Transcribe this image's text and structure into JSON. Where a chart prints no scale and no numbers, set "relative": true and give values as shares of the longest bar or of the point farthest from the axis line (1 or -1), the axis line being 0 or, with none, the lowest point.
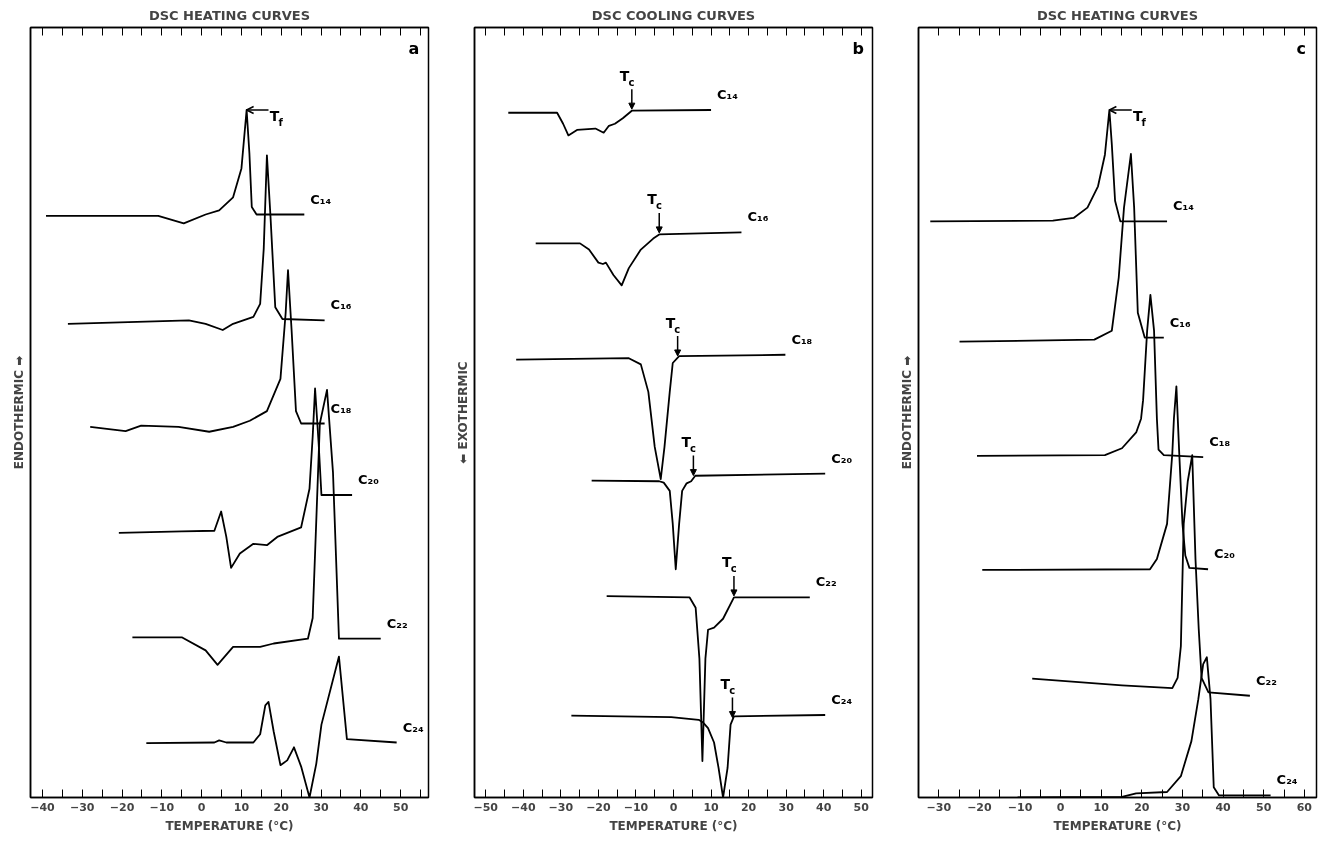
{
  "chart_data": [
    {
      "type": "line",
      "title": "DSC HEATING CURVES",
      "xlabel": "TEMPERATURE (°C)",
      "ylabel": "ENDOTHERMIC ➡",
      "relative": true,
      "tick_labels": "x",
      "grid": false,
      "xlim": [
        -43,
        57
      ],
      "xticks": [
        -40,
        -30,
        -20,
        -10,
        0,
        10,
        20,
        30,
        40,
        50,
        {
          "value": -35,
          "label": null
        },
        {
          "value": -25,
          "label": null
        },
        {
          "value": -15,
          "label": null
        },
        {
          "value": -5,
          "label": null
        },
        {
          "value": 5,
          "label": null
        },
        {
          "value": 15,
          "label": null
        },
        {
          "value": 25,
          "label": null
        },
        {
          "value": 35,
          "label": null
        },
        {
          "value": 45,
          "label": null
        },
        {
          "value": 55,
          "label": null
        }
      ],
      "annotations": [
        "a",
        {
          "text": "T$_{f}$",
          "x": 11.3,
          "y": 1.0
        }
      ],
      "series": [
        {
          "name": "C₁₄",
          "color": "#000000",
          "x": [
            -39.1,
            -10.9,
            -4.5,
            1.0,
            4.4,
            7.9,
            10.0,
            11.3,
            12.0,
            12.6,
            13.8,
            25.8
          ],
          "values": [
            0.846,
            0.846,
            0.835,
            0.848,
            0.854,
            0.873,
            0.915,
            1.0,
            0.937,
            0.859,
            0.848,
            0.848
          ]
        },
        {
          "name": "C₁₆",
          "color": "#000000",
          "x": [
            -33.6,
            -3.2,
            1.0,
            5.3,
            7.9,
            13.0,
            14.7,
            15.6,
            16.4,
            17.3,
            18.5,
            20.3,
            30.9
          ],
          "values": [
            0.689,
            0.694,
            0.689,
            0.68,
            0.689,
            0.699,
            0.718,
            0.798,
            0.934,
            0.845,
            0.713,
            0.696,
            0.694
          ]
        },
        {
          "name": "C₁₈",
          "color": "#000000",
          "x": [
            -28.0,
            -19.1,
            -15.2,
            -5.8,
            1.9,
            7.9,
            12.1,
            16.4,
            19.8,
            21.1,
            21.7,
            22.6,
            23.7,
            25.0,
            30.9
          ],
          "values": [
            0.539,
            0.533,
            0.541,
            0.539,
            0.532,
            0.539,
            0.548,
            0.562,
            0.609,
            0.704,
            0.767,
            0.68,
            0.562,
            0.544,
            0.544
          ]
        },
        {
          "name": "C₂₀",
          "color": "#000000",
          "x": [
            -20.8,
            -5.0,
            3.2,
            4.9,
            6.2,
            7.4,
            9.6,
            13.0,
            16.4,
            19.0,
            25.0,
            27.1,
            27.9,
            28.5,
            29.4,
            30.1,
            37.8
          ],
          "values": [
            0.385,
            0.387,
            0.388,
            0.416,
            0.379,
            0.334,
            0.355,
            0.369,
            0.367,
            0.379,
            0.393,
            0.449,
            0.525,
            0.595,
            0.515,
            0.44,
            0.44
          ]
        },
        {
          "name": "C₂₂",
          "color": "#000000",
          "x": [
            -17.4,
            -5.0,
            1.0,
            4.0,
            7.9,
            11.3,
            14.7,
            18.1,
            26.7,
            27.9,
            28.8,
            29.7,
            31.5,
            33.0,
            34.5,
            45.0
          ],
          "values": [
            0.233,
            0.233,
            0.214,
            0.193,
            0.219,
            0.219,
            0.219,
            0.224,
            0.231,
            0.261,
            0.402,
            0.544,
            0.593,
            0.473,
            0.231,
            0.231
          ]
        },
        {
          "name": "C₂₄",
          "color": "#000000",
          "x": [
            -13.9,
            3.2,
            4.4,
            6.2,
            13.0,
            14.7,
            16.0,
            16.8,
            18.1,
            19.8,
            21.5,
            23.2,
            25.0,
            27.1,
            28.8,
            30.1,
            34.5,
            36.5,
            49.0
          ],
          "values": [
            0.079,
            0.08,
            0.083,
            0.08,
            0.08,
            0.092,
            0.134,
            0.139,
            0.096,
            0.047,
            0.054,
            0.073,
            0.045,
            0.0,
            0.049,
            0.106,
            0.205,
            0.085,
            0.08
          ]
        }
      ]
    },
    {
      "type": "line",
      "title": "DSC COOLING CURVES",
      "xlabel": "TEMPERATURE (°C)",
      "ylabel": "⬅ EXOTHERMIC",
      "relative": true,
      "tick_labels": "x",
      "grid": false,
      "xlim": [
        -53,
        53
      ],
      "xticks": [
        -50,
        -40,
        -30,
        -20,
        -10,
        0,
        10,
        20,
        30,
        40,
        50,
        {
          "value": -45,
          "label": null
        },
        {
          "value": -35,
          "label": null
        },
        {
          "value": -25,
          "label": null
        },
        {
          "value": -15,
          "label": null
        },
        {
          "value": -5,
          "label": null
        },
        {
          "value": 5,
          "label": null
        },
        {
          "value": 15,
          "label": null
        },
        {
          "value": 25,
          "label": null
        },
        {
          "value": 35,
          "label": null
        },
        {
          "value": 45,
          "label": null
        }
      ],
      "annotations": [
        "b",
        {
          "text": "T$_{c}$",
          "x": -11.1,
          "y": 0.999
        },
        {
          "text": "T$_{c}$",
          "x": -3.8,
          "y": 0.819
        },
        {
          "text": "T$_{c}$",
          "x": 1.1,
          "y": 0.64
        },
        {
          "text": "T$_{c}$",
          "x": 5.3,
          "y": 0.466
        },
        {
          "text": "T$_{c}$",
          "x": 16.1,
          "y": 0.291
        },
        {
          "text": "T$_{c}$",
          "x": 15.7,
          "y": 0.114
        }
      ],
      "series": [
        {
          "name": "C₁₄",
          "color": "#000000",
          "x": [
            -44.0,
            -31.0,
            -29.4,
            -28.0,
            -25.7,
            -20.8,
            -18.6,
            -17.2,
            -15.6,
            -13.5,
            -11.1,
            10.0
          ],
          "values": [
            0.996,
            0.996,
            0.98,
            0.963,
            0.971,
            0.973,
            0.967,
            0.977,
            0.98,
            0.988,
            0.999,
            1.0
          ]
        },
        {
          "name": "C₁₆",
          "color": "#000000",
          "x": [
            -36.7,
            -24.9,
            -22.5,
            -20.0,
            -18.8,
            -18.0,
            -16.0,
            -13.8,
            -11.9,
            -8.7,
            -5.4,
            -3.8,
            18.1
          ],
          "values": [
            0.806,
            0.806,
            0.797,
            0.778,
            0.776,
            0.778,
            0.76,
            0.745,
            0.77,
            0.797,
            0.813,
            0.819,
            0.822
          ]
        },
        {
          "name": "C₁₈",
          "color": "#000000",
          "x": [
            -41.9,
            -11.9,
            -8.7,
            -6.7,
            -5.0,
            -3.4,
            -2.4,
            -1.0,
            -0.2,
            1.5,
            29.8
          ],
          "values": [
            0.637,
            0.639,
            0.63,
            0.59,
            0.51,
            0.463,
            0.51,
            0.59,
            0.632,
            0.642,
            0.644
          ]
        },
        {
          "name": "C₂₀",
          "color": "#000000",
          "x": [
            -21.8,
            -3.8,
            -2.6,
            -1.0,
            -0.2,
            0.6,
            1.5,
            2.3,
            3.5,
            4.7,
            5.8,
            40.4
          ],
          "values": [
            0.461,
            0.46,
            0.458,
            0.446,
            0.398,
            0.332,
            0.398,
            0.446,
            0.457,
            0.46,
            0.468,
            0.471
          ]
        },
        {
          "name": "C₂₂",
          "color": "#000000",
          "x": [
            -17.8,
            4.3,
            5.9,
            6.9,
            7.7,
            8.5,
            9.2,
            10.8,
            13.2,
            16.1,
            36.3
          ],
          "values": [
            0.293,
            0.291,
            0.276,
            0.202,
            0.053,
            0.202,
            0.244,
            0.247,
            0.26,
            0.291,
            0.291
          ]
        },
        {
          "name": "C₂₄",
          "color": "#000000",
          "x": [
            -27.2,
            -0.6,
            6.7,
            7.9,
            9.2,
            10.8,
            12.0,
            13.2,
            14.4,
            15.2,
            16.1,
            40.4
          ],
          "values": [
            0.119,
            0.117,
            0.113,
            0.109,
            0.101,
            0.08,
            0.043,
            0.0,
            0.043,
            0.106,
            0.118,
            0.12
          ]
        }
      ]
    },
    {
      "type": "line",
      "title": "DSC HEATING CURVES",
      "xlabel": "TEMPERATURE (°C)",
      "ylabel": "ENDOTHERMIC ➡",
      "relative": true,
      "tick_labels": "x",
      "grid": false,
      "xlim": [
        -35,
        63
      ],
      "xticks": [
        -30,
        -20,
        -10,
        0,
        10,
        20,
        30,
        40,
        50,
        60,
        {
          "value": -25,
          "label": null
        },
        {
          "value": -15,
          "label": null
        },
        {
          "value": -5,
          "label": null
        },
        {
          "value": 5,
          "label": null
        },
        {
          "value": 15,
          "label": null
        },
        {
          "value": 25,
          "label": null
        },
        {
          "value": 35,
          "label": null
        },
        {
          "value": 45,
          "label": null
        },
        {
          "value": 55,
          "label": null
        }
      ],
      "annotations": [
        "c",
        {
          "text": "T$_{f}$",
          "x": 12.0,
          "y": 1.0
        }
      ],
      "series": [
        {
          "name": "C₁₄",
          "color": "#000000",
          "x": [
            -32.1,
            -1.9,
            3.2,
            6.6,
            9.2,
            10.9,
            12.0,
            12.6,
            13.4,
            14.7,
            26.2
          ],
          "values": [
            0.838,
            0.839,
            0.843,
            0.858,
            0.889,
            0.935,
            1.0,
            0.95,
            0.868,
            0.838,
            0.838
          ]
        },
        {
          "name": "C₁₆",
          "color": "#000000",
          "x": [
            -24.9,
            8.3,
            12.6,
            14.3,
            15.6,
            17.3,
            18.1,
            19.0,
            20.7,
            25.4
          ],
          "values": [
            0.663,
            0.666,
            0.679,
            0.756,
            0.858,
            0.936,
            0.858,
            0.705,
            0.669,
            0.669
          ]
        },
        {
          "name": "C₁₈",
          "color": "#000000",
          "x": [
            -20.6,
            10.9,
            15.1,
            18.6,
            19.8,
            20.3,
            21.3,
            22.1,
            23.0,
            23.7,
            24.1,
            25.4,
            35.1
          ],
          "values": [
            0.497,
            0.498,
            0.508,
            0.531,
            0.551,
            0.578,
            0.679,
            0.731,
            0.679,
            0.551,
            0.506,
            0.498,
            0.495
          ]
        },
        {
          "name": "C₂₀",
          "color": "#000000",
          "x": [
            -19.3,
            22.0,
            23.7,
            26.2,
            27.5,
            27.9,
            28.5,
            29.2,
            30.0,
            30.7,
            31.7,
            36.3
          ],
          "values": [
            0.331,
            0.332,
            0.347,
            0.398,
            0.501,
            0.552,
            0.598,
            0.501,
            0.398,
            0.352,
            0.334,
            0.332
          ]
        },
        {
          "name": "C₂₂",
          "color": "#000000",
          "x": [
            -7.0,
            15.1,
            27.5,
            28.8,
            29.6,
            30.3,
            31.3,
            32.4,
            33.2,
            34.0,
            34.7,
            36.4,
            46.6
          ],
          "values": [
            0.173,
            0.163,
            0.159,
            0.174,
            0.22,
            0.398,
            0.46,
            0.498,
            0.347,
            0.245,
            0.174,
            0.153,
            0.148
          ]
        },
        {
          "name": "C₂₄",
          "color": "#000000",
          "x": [
            -10.6,
            15.1,
            18.6,
            26.2,
            29.6,
            32.2,
            33.9,
            35.1,
            36.0,
            36.9,
            37.7,
            39.0,
            51.7
          ],
          "values": [
            0.0,
            0.001,
            0.006,
            0.008,
            0.031,
            0.082,
            0.143,
            0.194,
            0.204,
            0.143,
            0.015,
            0.003,
            0.003
          ]
        }
      ]
    }
  ]
}
